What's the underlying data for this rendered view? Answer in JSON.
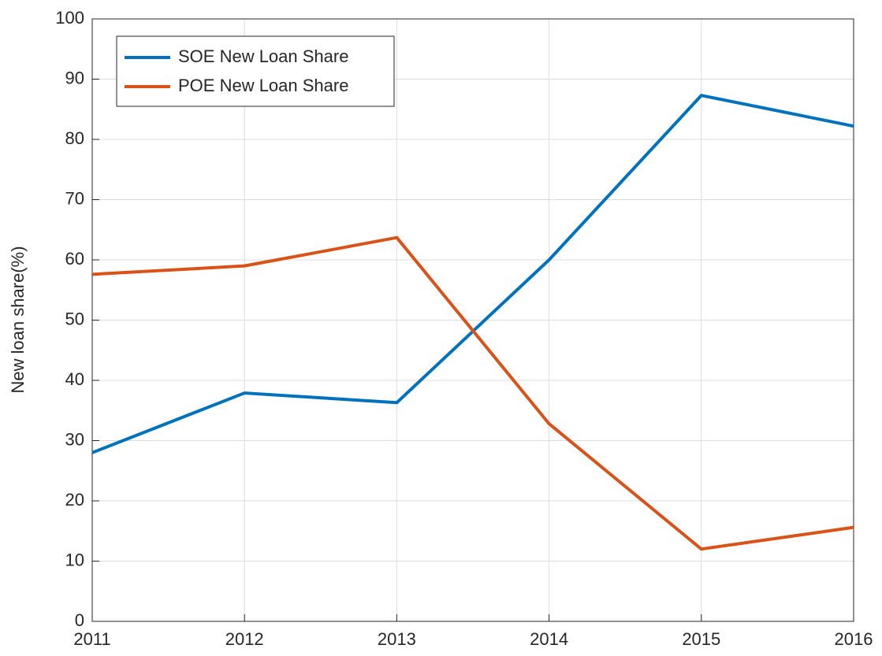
{
  "chart_data": {
    "type": "line",
    "ylabel": "New loan share(%)",
    "x": [
      2011,
      2012,
      2013,
      2014,
      2015,
      2016
    ],
    "series": [
      {
        "name": "SOE New Loan Share",
        "color": "#0072bd",
        "values": [
          28.0,
          37.9,
          36.3,
          60.0,
          87.3,
          82.2
        ]
      },
      {
        "name": "POE New Loan Share",
        "color": "#d95319",
        "values": [
          57.6,
          59.0,
          63.7,
          32.8,
          12.0,
          15.6
        ]
      }
    ],
    "xlim": [
      2011,
      2016
    ],
    "xticks": [
      2011,
      2012,
      2013,
      2014,
      2015,
      2016
    ],
    "ylim": [
      0,
      100
    ],
    "yticks": [
      0,
      10,
      20,
      30,
      40,
      50,
      60,
      70,
      80,
      90,
      100
    ],
    "grid": true,
    "legend": "upper left"
  }
}
